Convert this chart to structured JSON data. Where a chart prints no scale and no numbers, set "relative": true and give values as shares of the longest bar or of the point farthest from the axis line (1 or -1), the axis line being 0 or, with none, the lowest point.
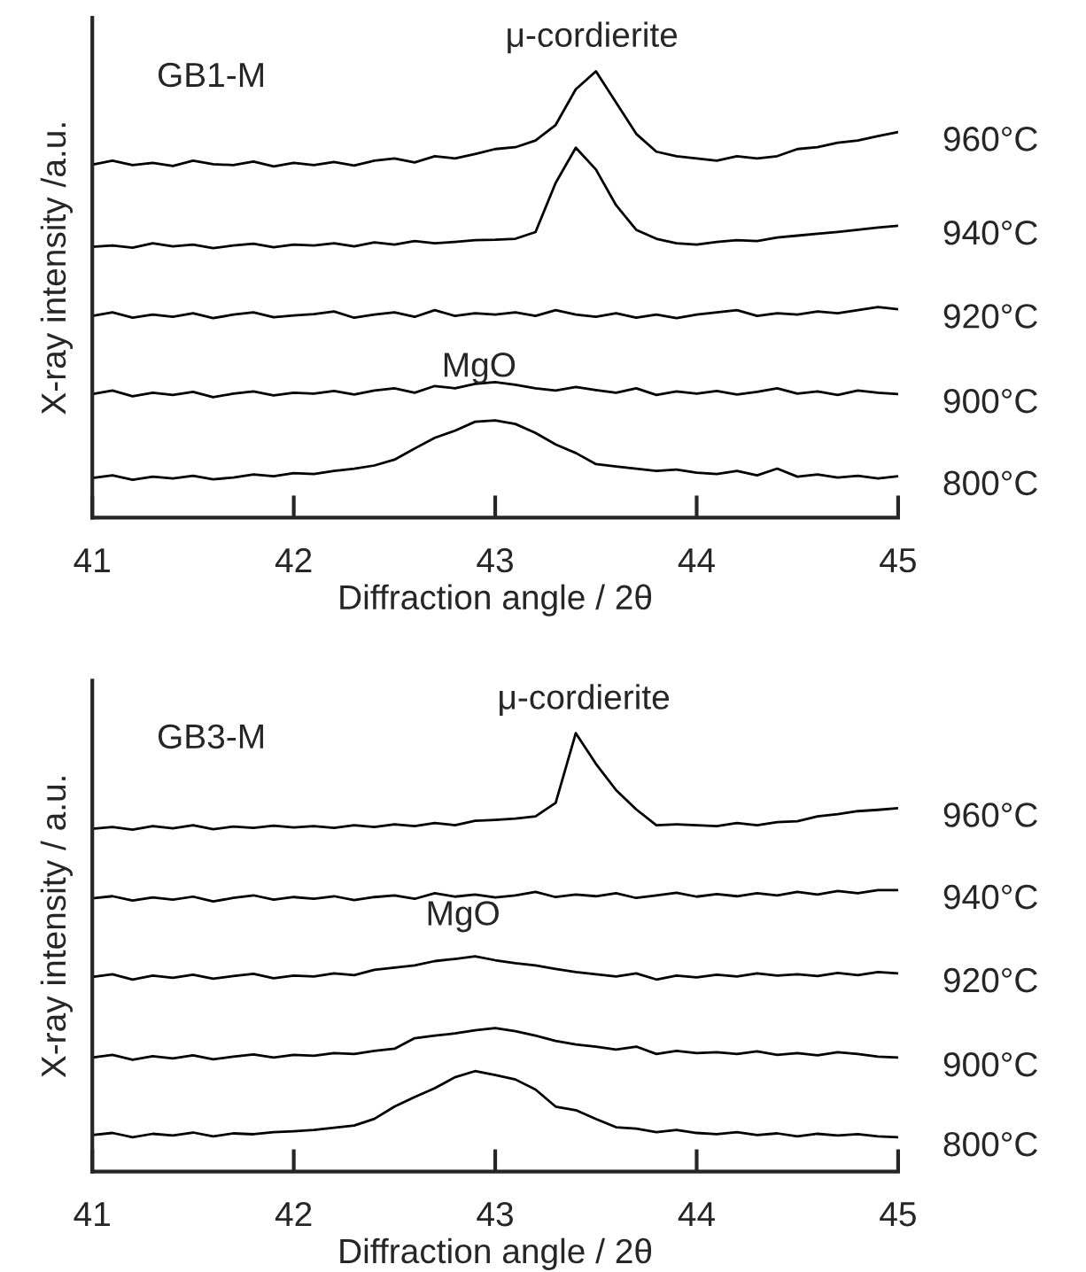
{
  "chart_data": [
    {
      "type": "line",
      "relative": true,
      "xlabel": "Diffraction angle / 2θ",
      "ylabel": "X-ray intensity /a.u.",
      "tick_labels": "x",
      "grid": false,
      "legend": false,
      "marker": "none",
      "line_style": "solid",
      "xlim": [
        41,
        45
      ],
      "xticks": [
        41,
        42,
        43,
        44,
        45
      ],
      "x": [
        41.0,
        41.1,
        41.2,
        41.3,
        41.4,
        41.5,
        41.6,
        41.7,
        41.8,
        41.9,
        42.0,
        42.1,
        42.2,
        42.3,
        42.4,
        42.5,
        42.6,
        42.7,
        42.8,
        42.9,
        43.0,
        43.1,
        43.2,
        43.3,
        43.4,
        43.5,
        43.6,
        43.7,
        43.8,
        43.9,
        44.0,
        44.1,
        44.2,
        44.3,
        44.4,
        44.5,
        44.6,
        44.7,
        44.8,
        44.9,
        45.0
      ],
      "annotations": [
        "GB1-M",
        "μ-cordierite",
        "MgO"
      ],
      "series": [
        {
          "name": "960°C",
          "color": "#000000",
          "values": [
            0.791,
            0.8,
            0.79,
            0.795,
            0.788,
            0.8,
            0.792,
            0.79,
            0.798,
            0.787,
            0.795,
            0.79,
            0.797,
            0.789,
            0.8,
            0.805,
            0.796,
            0.81,
            0.805,
            0.815,
            0.826,
            0.83,
            0.845,
            0.88,
            0.96,
            1.0,
            0.93,
            0.86,
            0.82,
            0.81,
            0.805,
            0.8,
            0.81,
            0.805,
            0.81,
            0.826,
            0.83,
            0.84,
            0.845,
            0.855,
            0.864
          ]
        },
        {
          "name": "940°C",
          "color": "#000000",
          "values": [
            0.607,
            0.61,
            0.605,
            0.615,
            0.608,
            0.612,
            0.604,
            0.61,
            0.614,
            0.606,
            0.612,
            0.61,
            0.615,
            0.608,
            0.617,
            0.612,
            0.62,
            0.615,
            0.618,
            0.622,
            0.623,
            0.625,
            0.64,
            0.75,
            0.829,
            0.78,
            0.7,
            0.645,
            0.625,
            0.615,
            0.612,
            0.618,
            0.622,
            0.62,
            0.628,
            0.632,
            0.636,
            0.64,
            0.645,
            0.65,
            0.654
          ]
        },
        {
          "name": "920°C",
          "color": "#000000",
          "values": [
            0.452,
            0.46,
            0.448,
            0.455,
            0.45,
            0.458,
            0.447,
            0.455,
            0.46,
            0.449,
            0.453,
            0.456,
            0.462,
            0.448,
            0.455,
            0.46,
            0.45,
            0.465,
            0.452,
            0.458,
            0.455,
            0.46,
            0.452,
            0.465,
            0.455,
            0.45,
            0.458,
            0.448,
            0.455,
            0.447,
            0.455,
            0.46,
            0.465,
            0.452,
            0.458,
            0.455,
            0.462,
            0.458,
            0.465,
            0.472,
            0.467
          ]
        },
        {
          "name": "900°C",
          "color": "#000000",
          "values": [
            0.277,
            0.285,
            0.272,
            0.28,
            0.275,
            0.282,
            0.27,
            0.278,
            0.283,
            0.274,
            0.28,
            0.278,
            0.284,
            0.276,
            0.285,
            0.29,
            0.28,
            0.295,
            0.29,
            0.3,
            0.304,
            0.298,
            0.29,
            0.285,
            0.293,
            0.286,
            0.28,
            0.29,
            0.275,
            0.283,
            0.278,
            0.284,
            0.276,
            0.282,
            0.29,
            0.278,
            0.283,
            0.275,
            0.285,
            0.28,
            0.277
          ]
        },
        {
          "name": "800°C",
          "color": "#000000",
          "values": [
            0.089,
            0.095,
            0.085,
            0.092,
            0.088,
            0.094,
            0.086,
            0.09,
            0.097,
            0.093,
            0.1,
            0.098,
            0.105,
            0.11,
            0.117,
            0.13,
            0.155,
            0.179,
            0.195,
            0.215,
            0.218,
            0.21,
            0.19,
            0.164,
            0.145,
            0.12,
            0.115,
            0.11,
            0.105,
            0.108,
            0.101,
            0.098,
            0.105,
            0.095,
            0.11,
            0.092,
            0.097,
            0.09,
            0.094,
            0.088,
            0.093
          ]
        }
      ]
    },
    {
      "type": "line",
      "relative": true,
      "xlabel": "Diffraction angle / 2θ",
      "ylabel": "X-ray intensity / a.u.",
      "tick_labels": "x",
      "grid": false,
      "legend": false,
      "marker": "none",
      "line_style": "solid",
      "xlim": [
        41,
        45
      ],
      "xticks": [
        41,
        42,
        43,
        44,
        45
      ],
      "x": [
        41.0,
        41.1,
        41.2,
        41.3,
        41.4,
        41.5,
        41.6,
        41.7,
        41.8,
        41.9,
        42.0,
        42.1,
        42.2,
        42.3,
        42.4,
        42.5,
        42.6,
        42.7,
        42.8,
        42.9,
        43.0,
        43.1,
        43.2,
        43.3,
        43.4,
        43.5,
        43.6,
        43.7,
        43.8,
        43.9,
        44.0,
        44.1,
        44.2,
        44.3,
        44.4,
        44.5,
        44.6,
        44.7,
        44.8,
        44.9,
        45.0
      ],
      "annotations": [
        "GB3-M",
        "μ-cordierite",
        "MgO"
      ],
      "series": [
        {
          "name": "960°C",
          "color": "#000000",
          "values": [
            0.782,
            0.786,
            0.78,
            0.788,
            0.783,
            0.79,
            0.781,
            0.787,
            0.784,
            0.789,
            0.785,
            0.788,
            0.784,
            0.79,
            0.786,
            0.792,
            0.788,
            0.795,
            0.79,
            0.8,
            0.802,
            0.805,
            0.81,
            0.841,
            1.0,
            0.93,
            0.87,
            0.826,
            0.79,
            0.792,
            0.79,
            0.788,
            0.795,
            0.79,
            0.797,
            0.799,
            0.81,
            0.815,
            0.822,
            0.825,
            0.829
          ]
        },
        {
          "name": "940°C",
          "color": "#000000",
          "values": [
            0.623,
            0.628,
            0.618,
            0.625,
            0.62,
            0.627,
            0.616,
            0.624,
            0.63,
            0.62,
            0.626,
            0.622,
            0.628,
            0.619,
            0.626,
            0.63,
            0.622,
            0.635,
            0.627,
            0.632,
            0.625,
            0.63,
            0.638,
            0.626,
            0.632,
            0.628,
            0.635,
            0.624,
            0.63,
            0.636,
            0.627,
            0.633,
            0.628,
            0.635,
            0.63,
            0.638,
            0.632,
            0.64,
            0.635,
            0.642,
            0.642
          ]
        },
        {
          "name": "920°C",
          "color": "#000000",
          "values": [
            0.444,
            0.45,
            0.438,
            0.447,
            0.442,
            0.449,
            0.44,
            0.446,
            0.451,
            0.441,
            0.447,
            0.445,
            0.452,
            0.448,
            0.46,
            0.465,
            0.47,
            0.48,
            0.485,
            0.491,
            0.482,
            0.475,
            0.47,
            0.462,
            0.455,
            0.45,
            0.445,
            0.452,
            0.438,
            0.447,
            0.443,
            0.449,
            0.445,
            0.452,
            0.447,
            0.45,
            0.446,
            0.453,
            0.448,
            0.455,
            0.452
          ]
        },
        {
          "name": "900°C",
          "color": "#000000",
          "values": [
            0.26,
            0.266,
            0.255,
            0.263,
            0.258,
            0.265,
            0.256,
            0.262,
            0.267,
            0.26,
            0.266,
            0.264,
            0.27,
            0.268,
            0.275,
            0.28,
            0.304,
            0.31,
            0.315,
            0.322,
            0.327,
            0.32,
            0.31,
            0.298,
            0.29,
            0.285,
            0.278,
            0.285,
            0.268,
            0.275,
            0.27,
            0.272,
            0.268,
            0.274,
            0.266,
            0.27,
            0.265,
            0.272,
            0.268,
            0.262,
            0.26
          ]
        },
        {
          "name": "800°C",
          "color": "#000000",
          "values": [
            0.083,
            0.088,
            0.078,
            0.086,
            0.082,
            0.089,
            0.08,
            0.087,
            0.085,
            0.09,
            0.092,
            0.095,
            0.1,
            0.105,
            0.12,
            0.148,
            0.17,
            0.19,
            0.215,
            0.229,
            0.22,
            0.21,
            0.187,
            0.148,
            0.14,
            0.12,
            0.101,
            0.098,
            0.09,
            0.095,
            0.088,
            0.085,
            0.09,
            0.083,
            0.087,
            0.08,
            0.086,
            0.082,
            0.085,
            0.08,
            0.078
          ]
        }
      ]
    }
  ]
}
